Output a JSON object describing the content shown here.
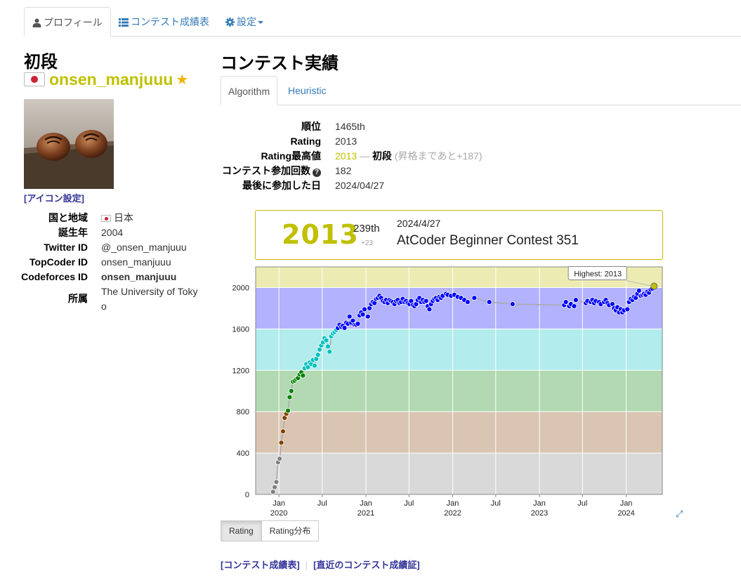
{
  "nav": {
    "tabs": [
      {
        "label": "プロフィール",
        "icon": "user-icon",
        "active": true
      },
      {
        "label": "コンテスト成績表",
        "icon": "list-icon",
        "active": false
      },
      {
        "label": "設定",
        "icon": "gear-icon",
        "active": false
      }
    ]
  },
  "profile": {
    "rank_title": "初段",
    "username": "onsen_manjuuu",
    "username_color": "#c0c000",
    "icon_setting_link": "[アイコン設定]",
    "fields": [
      {
        "key": "国と地域",
        "value": "日本"
      },
      {
        "key": "誕生年",
        "value": "2004"
      },
      {
        "key": "Twitter ID",
        "value": "@_onsen_manjuuu"
      },
      {
        "key": "TopCoder ID",
        "value": "onsen_manjuuu"
      },
      {
        "key": "Codeforces ID",
        "value": "onsen_manjuuu"
      },
      {
        "key": "所属",
        "value_line1": "The University of Toky",
        "value_line2": "o"
      }
    ]
  },
  "contest": {
    "title": "コンテスト実績",
    "tabs": [
      "Algorithm",
      "Heuristic"
    ],
    "stats": {
      "rank_label": "順位",
      "rank_value": "1465th",
      "rating_label": "Rating",
      "rating_value": "2013",
      "highest_label": "Rating最高値",
      "highest_value": "2013",
      "highest_dash": " — ",
      "highest_grade": "初段",
      "highest_note": "(昇格まであと+187)",
      "count_label": "コンテスト参加回数",
      "count_value": "182",
      "last_label": "最後に参加した日",
      "last_value": "2024/04/27"
    },
    "card": {
      "rating": "2013",
      "place": "239th",
      "delta": "+23",
      "date": "2024/4/27",
      "contest_name": "AtCoder Beginner Contest 351"
    },
    "buttons": [
      "Rating",
      "Rating分布"
    ],
    "bottom_links": [
      "[コンテスト成績表]",
      "[直近のコンテスト成績証]"
    ]
  },
  "chart_data": {
    "type": "line",
    "ylim": [
      0,
      2200
    ],
    "yticks": [
      0,
      400,
      800,
      1200,
      1600,
      2000
    ],
    "xticks": [
      {
        "date": "2020-01-01",
        "label": "Jan",
        "year": "2020"
      },
      {
        "date": "2020-07-01",
        "label": "Jul"
      },
      {
        "date": "2021-01-01",
        "label": "Jan",
        "year": "2021"
      },
      {
        "date": "2021-07-01",
        "label": "Jul"
      },
      {
        "date": "2022-01-01",
        "label": "Jan",
        "year": "2022"
      },
      {
        "date": "2022-07-01",
        "label": "Jul"
      },
      {
        "date": "2023-01-01",
        "label": "Jan",
        "year": "2023"
      },
      {
        "date": "2023-07-01",
        "label": "Jul"
      },
      {
        "date": "2024-01-01",
        "label": "Jan",
        "year": "2024"
      }
    ],
    "xrange": [
      "2019-09-25",
      "2024-06-01"
    ],
    "bands": [
      {
        "from": 0,
        "to": 400,
        "color": "#d9d9d9"
      },
      {
        "from": 400,
        "to": 800,
        "color": "#d9c5b2"
      },
      {
        "from": 800,
        "to": 1200,
        "color": "#b2d9b2"
      },
      {
        "from": 1200,
        "to": 1600,
        "color": "#b2ecec"
      },
      {
        "from": 1600,
        "to": 2000,
        "color": "#b2b2ff"
      },
      {
        "from": 2000,
        "to": 2400,
        "color": "#ececb2"
      }
    ],
    "highest_label": "Highest: 2013",
    "points": [
      [
        "2019-12-07",
        25
      ],
      [
        "2019-12-14",
        70
      ],
      [
        "2019-12-21",
        120
      ],
      [
        "2019-12-28",
        310
      ],
      [
        "2020-01-04",
        345
      ],
      [
        "2020-01-11",
        500
      ],
      [
        "2020-01-18",
        610
      ],
      [
        "2020-01-25",
        740
      ],
      [
        "2020-02-01",
        780
      ],
      [
        "2020-02-08",
        810
      ],
      [
        "2020-02-15",
        940
      ],
      [
        "2020-02-22",
        1000
      ],
      [
        "2020-02-29",
        1090
      ],
      [
        "2020-03-07",
        1100
      ],
      [
        "2020-03-14",
        1115
      ],
      [
        "2020-03-21",
        1125
      ],
      [
        "2020-03-28",
        1160
      ],
      [
        "2020-04-04",
        1180
      ],
      [
        "2020-04-11",
        1150
      ],
      [
        "2020-04-18",
        1220
      ],
      [
        "2020-04-25",
        1260
      ],
      [
        "2020-05-02",
        1230
      ],
      [
        "2020-05-09",
        1275
      ],
      [
        "2020-05-16",
        1260
      ],
      [
        "2020-05-23",
        1300
      ],
      [
        "2020-05-30",
        1245
      ],
      [
        "2020-06-06",
        1310
      ],
      [
        "2020-06-13",
        1350
      ],
      [
        "2020-06-20",
        1400
      ],
      [
        "2020-06-27",
        1440
      ],
      [
        "2020-07-04",
        1470
      ],
      [
        "2020-07-11",
        1510
      ],
      [
        "2020-07-18",
        1490
      ],
      [
        "2020-07-25",
        1430
      ],
      [
        "2020-08-01",
        1380
      ],
      [
        "2020-08-08",
        1530
      ],
      [
        "2020-08-15",
        1555
      ],
      [
        "2020-08-22",
        1570
      ],
      [
        "2020-08-29",
        1590
      ],
      [
        "2020-09-05",
        1610
      ],
      [
        "2020-09-12",
        1640
      ],
      [
        "2020-09-19",
        1620
      ],
      [
        "2020-09-26",
        1630
      ],
      [
        "2020-10-03",
        1610
      ],
      [
        "2020-10-10",
        1660
      ],
      [
        "2020-10-17",
        1650
      ],
      [
        "2020-10-24",
        1720
      ],
      [
        "2020-10-31",
        1660
      ],
      [
        "2020-11-07",
        1680
      ],
      [
        "2020-11-14",
        1640
      ],
      [
        "2020-11-21",
        1640
      ],
      [
        "2020-11-28",
        1650
      ],
      [
        "2020-12-05",
        1730
      ],
      [
        "2020-12-12",
        1760
      ],
      [
        "2020-12-19",
        1740
      ],
      [
        "2020-12-26",
        1790
      ],
      [
        "2021-01-09",
        1720
      ],
      [
        "2021-01-16",
        1800
      ],
      [
        "2021-01-23",
        1840
      ],
      [
        "2021-01-30",
        1860
      ],
      [
        "2021-02-06",
        1850
      ],
      [
        "2021-02-13",
        1890
      ],
      [
        "2021-02-20",
        1900
      ],
      [
        "2021-02-27",
        1920
      ],
      [
        "2021-03-06",
        1900
      ],
      [
        "2021-03-13",
        1870
      ],
      [
        "2021-03-20",
        1860
      ],
      [
        "2021-03-27",
        1880
      ],
      [
        "2021-04-03",
        1850
      ],
      [
        "2021-04-10",
        1880
      ],
      [
        "2021-04-17",
        1870
      ],
      [
        "2021-04-24",
        1860
      ],
      [
        "2021-05-01",
        1840
      ],
      [
        "2021-05-08",
        1870
      ],
      [
        "2021-05-15",
        1880
      ],
      [
        "2021-05-22",
        1850
      ],
      [
        "2021-05-29",
        1860
      ],
      [
        "2021-06-05",
        1890
      ],
      [
        "2021-06-12",
        1860
      ],
      [
        "2021-06-19",
        1870
      ],
      [
        "2021-06-26",
        1850
      ],
      [
        "2021-07-03",
        1840
      ],
      [
        "2021-07-10",
        1870
      ],
      [
        "2021-07-17",
        1830
      ],
      [
        "2021-07-24",
        1820
      ],
      [
        "2021-07-31",
        1840
      ],
      [
        "2021-08-07",
        1880
      ],
      [
        "2021-08-14",
        1900
      ],
      [
        "2021-08-21",
        1860
      ],
      [
        "2021-08-28",
        1880
      ],
      [
        "2021-09-04",
        1860
      ],
      [
        "2021-09-11",
        1870
      ],
      [
        "2021-09-18",
        1820
      ],
      [
        "2021-09-25",
        1790
      ],
      [
        "2021-10-02",
        1840
      ],
      [
        "2021-10-09",
        1870
      ],
      [
        "2021-10-16",
        1890
      ],
      [
        "2021-10-23",
        1900
      ],
      [
        "2021-10-30",
        1880
      ],
      [
        "2021-11-06",
        1910
      ],
      [
        "2021-11-13",
        1900
      ],
      [
        "2021-11-20",
        1920
      ],
      [
        "2021-12-04",
        1940
      ],
      [
        "2021-12-11",
        1930
      ],
      [
        "2021-12-25",
        1920
      ],
      [
        "2022-01-08",
        1930
      ],
      [
        "2022-01-22",
        1910
      ],
      [
        "2022-02-05",
        1900
      ],
      [
        "2022-02-19",
        1880
      ],
      [
        "2022-03-05",
        1860
      ],
      [
        "2022-04-02",
        1900
      ],
      [
        "2022-06-04",
        1860
      ],
      [
        "2022-09-10",
        1840
      ],
      [
        "2023-04-15",
        1830
      ],
      [
        "2023-04-22",
        1860
      ],
      [
        "2023-05-06",
        1820
      ],
      [
        "2023-05-13",
        1840
      ],
      [
        "2023-05-27",
        1820
      ],
      [
        "2023-06-03",
        1880
      ],
      [
        "2023-07-15",
        1850
      ],
      [
        "2023-07-22",
        1870
      ],
      [
        "2023-08-05",
        1860
      ],
      [
        "2023-08-12",
        1880
      ],
      [
        "2023-08-19",
        1850
      ],
      [
        "2023-08-26",
        1870
      ],
      [
        "2023-09-09",
        1860
      ],
      [
        "2023-09-16",
        1840
      ],
      [
        "2023-09-30",
        1860
      ],
      [
        "2023-10-07",
        1880
      ],
      [
        "2023-10-14",
        1850
      ],
      [
        "2023-10-21",
        1830
      ],
      [
        "2023-11-04",
        1840
      ],
      [
        "2023-11-11",
        1800
      ],
      [
        "2023-11-18",
        1780
      ],
      [
        "2023-11-25",
        1810
      ],
      [
        "2023-12-02",
        1760
      ],
      [
        "2023-12-09",
        1790
      ],
      [
        "2023-12-16",
        1760
      ],
      [
        "2023-12-23",
        1780
      ],
      [
        "2024-01-06",
        1790
      ],
      [
        "2024-01-13",
        1860
      ],
      [
        "2024-01-20",
        1890
      ],
      [
        "2024-01-27",
        1880
      ],
      [
        "2024-02-03",
        1910
      ],
      [
        "2024-02-10",
        1900
      ],
      [
        "2024-02-17",
        1940
      ],
      [
        "2024-02-24",
        1970
      ],
      [
        "2024-03-02",
        1920
      ],
      [
        "2024-03-09",
        1930
      ],
      [
        "2024-03-16",
        1940
      ],
      [
        "2024-03-23",
        1930
      ],
      [
        "2024-03-30",
        1960
      ],
      [
        "2024-04-06",
        1950
      ],
      [
        "2024-04-13",
        1980
      ],
      [
        "2024-04-20",
        1990
      ],
      [
        "2024-04-27",
        2013
      ]
    ]
  }
}
